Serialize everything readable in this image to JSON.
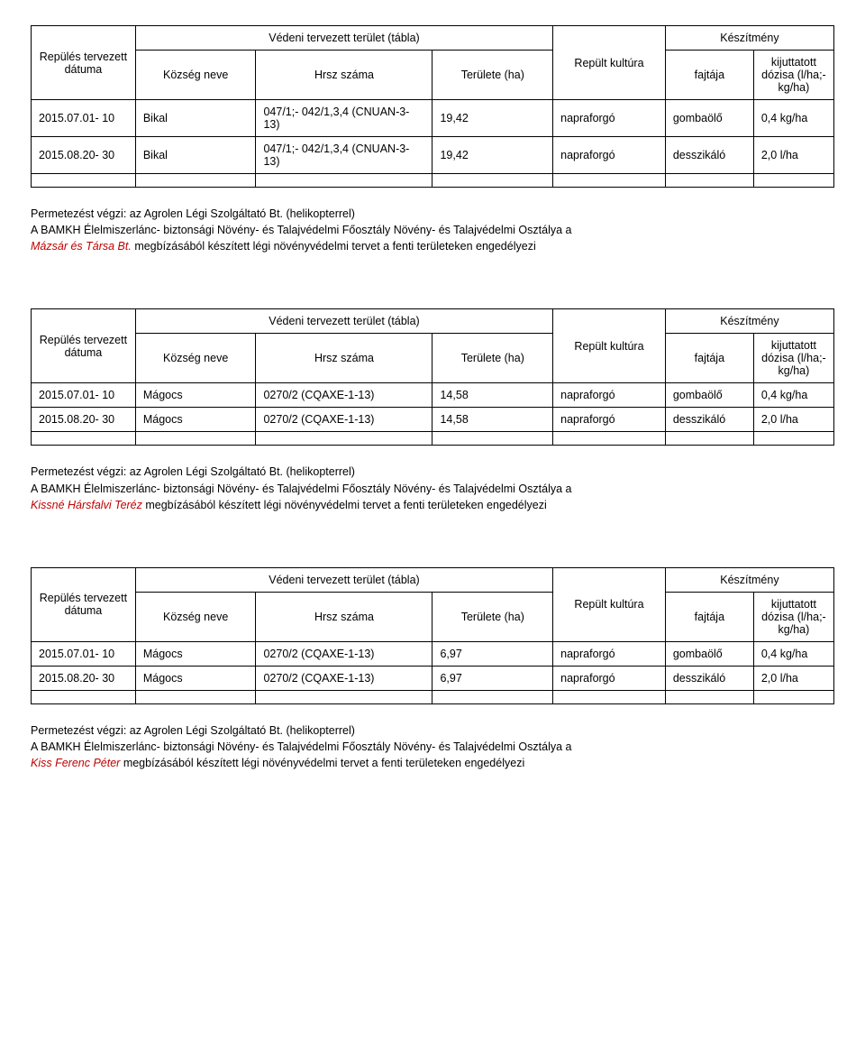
{
  "headers": {
    "col1": "Repülés tervezett dátuma",
    "group1": "Védeni tervezett terület (tábla)",
    "col2": "Község neve",
    "col3": "Hrsz száma",
    "col4": "Területe (ha)",
    "col5": "Repült kultúra",
    "group2": "Készítmény",
    "col6": "fajtája",
    "col7": "kijuttatott dózisa (l/ha;- kg/ha)"
  },
  "tables": [
    {
      "rows": [
        {
          "d": "2015.07.01- 10",
          "k": "Bikal",
          "h": "047/1;- 042/1,3,4 (CNUAN-3-13)",
          "t": "19,42",
          "r": "napraforgó",
          "f": "gombaölő",
          "dose": "0,4 kg/ha"
        },
        {
          "d": "2015.08.20- 30",
          "k": "Bikal",
          "h": "047/1;- 042/1,3,4 (CNUAN-3-13)",
          "t": "19,42",
          "r": "napraforgó",
          "f": "desszikáló",
          "dose": "2,0 l/ha"
        }
      ]
    },
    {
      "rows": [
        {
          "d": "2015.07.01- 10",
          "k": "Mágocs",
          "h": "0270/2 (CQAXE-1-13)",
          "t": "14,58",
          "r": "napraforgó",
          "f": "gombaölő",
          "dose": "0,4 kg/ha"
        },
        {
          "d": "2015.08.20- 30",
          "k": "Mágocs",
          "h": "0270/2 (CQAXE-1-13)",
          "t": "14,58",
          "r": "napraforgó",
          "f": "desszikáló",
          "dose": "2,0 l/ha"
        }
      ]
    },
    {
      "rows": [
        {
          "d": "2015.07.01- 10",
          "k": "Mágocs",
          "h": "0270/2 (CQAXE-1-13)",
          "t": "6,97",
          "r": "napraforgó",
          "f": "gombaölő",
          "dose": "0,4 kg/ha"
        },
        {
          "d": "2015.08.20- 30",
          "k": "Mágocs",
          "h": "0270/2 (CQAXE-1-13)",
          "t": "6,97",
          "r": "napraforgó",
          "f": "desszikáló",
          "dose": "2,0 l/ha"
        }
      ]
    }
  ],
  "paras": {
    "line1": "Permetezést végzi: az Agrolen Légi Szolgáltató Bt. (helikopterrel)",
    "line2": "A BAMKH Élelmiszerlánc- biztonsági Növény- és Talajvédelmi Főosztály Növény- és Talajvédelmi Osztálya a",
    "suffix_a": " megbízásából készített légi növényvédelmi tervet a fenti területeken engedélyezi",
    "suffix_b": " megbízásából készített légi növényvédelmi tervet a fenti területeken engedélyezi",
    "suffix_c": " megbízásából készített légi növényvédelmi tervet a fenti területeken engedélyezi",
    "name_a": "Mázsár és Társa Bt.",
    "name_b": "Kissné Hársfalvi Teréz",
    "name_c": "Kiss Ferenc Péter"
  }
}
